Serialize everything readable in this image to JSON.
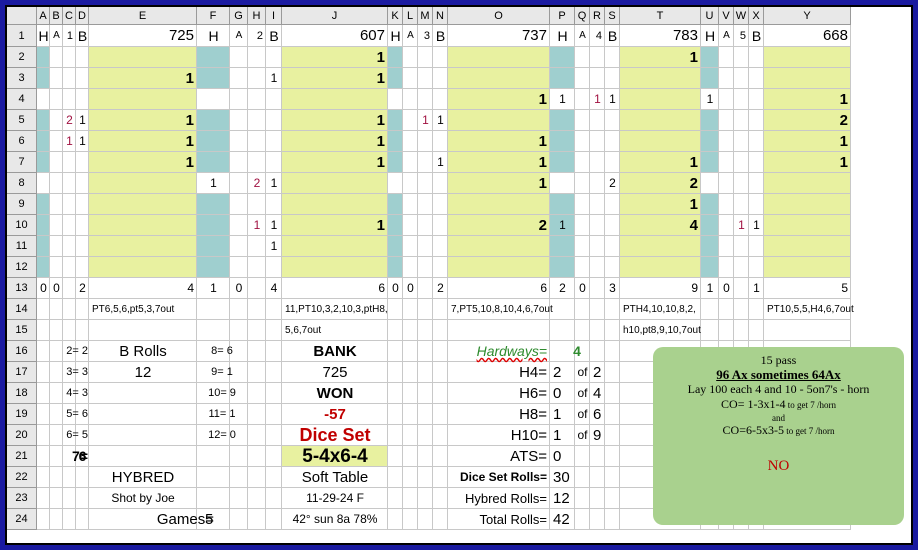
{
  "columns": [
    "A",
    "B",
    "C",
    "D",
    "E",
    "F",
    "G",
    "H",
    "I",
    "J",
    "K",
    "L",
    "M",
    "N",
    "O",
    "P",
    "Q",
    "R",
    "S",
    "T",
    "U",
    "V",
    "W",
    "X",
    "Y"
  ],
  "rows": [
    "1",
    "2",
    "3",
    "4",
    "5",
    "6",
    "7",
    "8",
    "9",
    "10",
    "11",
    "12",
    "13",
    "14",
    "15",
    "16",
    "17",
    "18",
    "19",
    "20",
    "21",
    "22",
    "23",
    "24"
  ],
  "colors": {
    "yellow": "#e8f1a0",
    "teal": "#9fcfcf",
    "note": "#a9d18e",
    "red": "#c00000",
    "purple": "#a01040",
    "green": "#2e8b2e",
    "frame": "#1a1aa0"
  },
  "cells": {
    "A1": "H",
    "B1": "A",
    "C1": "1",
    "D1": "B",
    "E1": "725",
    "F1": "H",
    "G1": "A",
    "H1": "2",
    "I1": "B",
    "J1": "607",
    "K1": "H",
    "L1": "A",
    "M1": "3",
    "N1": "B",
    "O1": "737",
    "P1": "H",
    "Q1": "A",
    "R1": "4",
    "S1": "B",
    "T1": "783",
    "U1": "H",
    "V1": "A",
    "W1": "5",
    "X1": "B",
    "Y1": "668",
    "J2": "1",
    "T2": "1",
    "E3": "1",
    "I3": "1",
    "J3": "1",
    "O4": "1",
    "P4": "1",
    "R4": "1",
    "S4": "1",
    "U4": "1",
    "Y4": "1",
    "C5": "2",
    "D5": "1",
    "E5": "1",
    "J5": "1",
    "M5": "1",
    "N5": "1",
    "Y5": "2",
    "C6": "1",
    "D6": "1",
    "E6": "1",
    "J6": "1",
    "O6": "1",
    "Y6": "1",
    "E7": "1",
    "J7": "1",
    "N7": "1",
    "O7": "1",
    "T7": "1",
    "Y7": "1",
    "F8": "1",
    "H8": "2",
    "I8": "1",
    "O8": "1",
    "S8": "2",
    "T8": "2",
    "T9": "1",
    "H10": "1",
    "I10": "1",
    "J10": "1",
    "O10": "2",
    "P10": "1",
    "T10": "4",
    "W10": "1",
    "X10": "1",
    "I11": "1",
    "A13": "0",
    "B13": "0",
    "D13": "2",
    "E13": "4",
    "F13": "1",
    "G13": "0",
    "I13": "4",
    "J13": "6",
    "K13": "0",
    "L13": "0",
    "N13": "2",
    "O13": "6",
    "P13": "2",
    "Q13": "0",
    "S13": "3",
    "T13": "9",
    "U13": "1",
    "V13": "0",
    "X13": "1",
    "Y13": "5",
    "E14": "PT6,5,6,pt5,3,7out",
    "J14": "11,PT10,3,2,10,3,ptH8,",
    "O14": "7,PT5,10,8,10,4,6,7out",
    "T14": "PTH4,10,10,8,2,",
    "Y14": "PT10,5,5,H4,6,7out",
    "J15": "5,6,7out",
    "T15": "h10,pt8,9,10,7out",
    "C16": "2= 2",
    "E16": "B Rolls",
    "G16": "8= 6",
    "J16": "BANK",
    "O16": "Hardways=",
    "Q16": "4",
    "C17": "3= 3",
    "E17": "12",
    "G17": "9= 1",
    "J17": "725",
    "O17": "H4=",
    "P17": "2",
    "Q17": "of",
    "R17": "2",
    "C18": "4= 3",
    "G18": "10= 9",
    "J18": "WON",
    "O18": "H6=",
    "P18": "0",
    "Q18": "of",
    "R18": "4",
    "C19": "5= 6",
    "G19": "11= 1",
    "J19": "-57",
    "O19": "H8=",
    "P19": "1",
    "Q19": "of",
    "R19": "6",
    "C20": "6= 5",
    "G20": "12= 0",
    "J20": "Dice Set",
    "O20": "H10=",
    "P20": "1",
    "Q20": "of",
    "R20": "9",
    "C21": "7=",
    "D21": "6",
    "J21": "5-4x6-4",
    "O21": "ATS=",
    "P21": "0",
    "E22": "HYBRED",
    "J22": "Soft Table",
    "O22": "Dice Set Rolls=",
    "P22": "30",
    "E23": "Shot by Joe",
    "J23": "11-29-24 F",
    "O23": "Hybred Rolls=",
    "P23": "12",
    "E24": "Games=",
    "G24": "5",
    "J24": "42° sun 8a 78%",
    "O24": "Total Rolls=",
    "P24": "42"
  },
  "note": {
    "line1": "15 pass",
    "line2": "96 Ax sometimes 64Ax",
    "line3": "Lay  100 each 4 and 10 - 5on7's - horn",
    "line4a": "CO= 1-3x1-4",
    "line4b": " to get 7 /horn",
    "line5": "and",
    "line6a": "CO=6-5x3-5",
    "line6b": " to get 7 /horn",
    "line7": "NO"
  }
}
